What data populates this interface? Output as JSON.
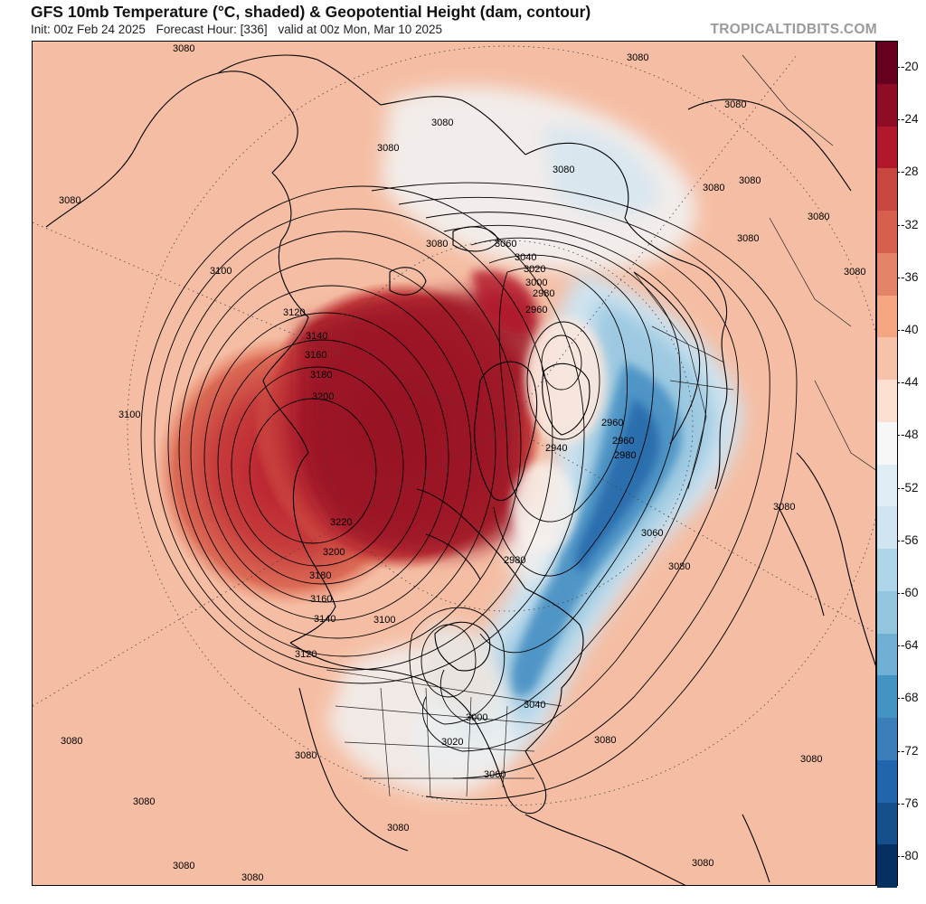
{
  "header": {
    "title": "GFS 10mb Temperature (°C, shaded) & Geopotential Height (dam, contour)",
    "init": "Init: 00z Feb 24 2025",
    "forecast_hour": "Forecast Hour: [336]",
    "valid": "valid at 00z Mon, Mar 10 2025",
    "brand": "TROPICALTIDBITS.COM"
  },
  "colorbar": {
    "unit": "°C",
    "labels": [
      "-20",
      "-24",
      "-28",
      "-32",
      "-36",
      "-40",
      "-44",
      "-48",
      "-52",
      "-56",
      "-60",
      "-64",
      "-68",
      "-72",
      "-76",
      "-80"
    ],
    "colors": [
      "#67001f",
      "#8e0c25",
      "#b2182b",
      "#c94741",
      "#d6604d",
      "#e58368",
      "#f4a582",
      "#f6c2a9",
      "#fbe0d1",
      "#f7f7f7",
      "#e1edf5",
      "#d1e5f0",
      "#b1d5e8",
      "#92c5de",
      "#6fafd4",
      "#4393c3",
      "#3a7fba",
      "#2166ac",
      "#154f8c",
      "#053061"
    ]
  },
  "map_data": {
    "projection": "polar stereographic (north pole)",
    "contour_units": "dam",
    "height_labels": [
      "3080",
      "3080",
      "3080",
      "3080",
      "3080",
      "3080",
      "3080",
      "3080",
      "3080",
      "3080",
      "3080",
      "3080",
      "3080",
      "3080",
      "3080",
      "3080",
      "3080",
      "3080",
      "3080",
      "3080",
      "3080",
      "3080",
      "3060",
      "3040",
      "3020",
      "3000",
      "2980",
      "2960",
      "2960",
      "2940",
      "2960",
      "2980",
      "3060",
      "3080",
      "3100",
      "3100",
      "3120",
      "3140",
      "3160",
      "3180",
      "3200",
      "3220",
      "3200",
      "3180",
      "3160",
      "3140",
      "3100",
      "3120",
      "2980",
      "3040",
      "3000",
      "3020",
      "3060",
      "3080"
    ]
  }
}
